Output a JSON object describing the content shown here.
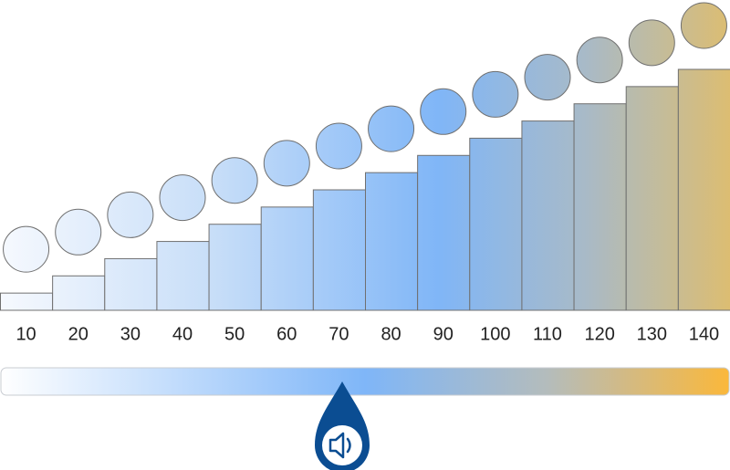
{
  "chart_data": {
    "type": "bar",
    "values": [
      10,
      20,
      30,
      40,
      50,
      60,
      70,
      80,
      90,
      100,
      110,
      120,
      130,
      140
    ]
  }
}
